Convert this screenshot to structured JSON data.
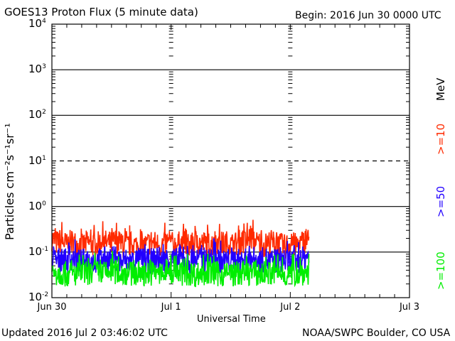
{
  "chart_data": {
    "type": "line",
    "title": "GOES13 Proton Flux (5 minute data)",
    "begin_label": "Begin: 2016 Jun 30 0000 UTC",
    "xlabel": "Universal Time",
    "ylabel": "Particles cm⁻²s⁻¹sr⁻¹",
    "yscale": "log",
    "ylim": [
      0.01,
      10000
    ],
    "y_ticks": [
      {
        "base": "10",
        "exp": "4",
        "value": 10000
      },
      {
        "base": "10",
        "exp": "3",
        "value": 1000
      },
      {
        "base": "10",
        "exp": "2",
        "value": 100
      },
      {
        "base": "10",
        "exp": "1",
        "value": 10
      },
      {
        "base": "10",
        "exp": "0",
        "value": 1
      },
      {
        "base": "10",
        "exp": "-1",
        "value": 0.1
      },
      {
        "base": "10",
        "exp": "-2",
        "value": 0.01
      }
    ],
    "xlim_hours": [
      0,
      72
    ],
    "x_ticks": [
      {
        "label": "Jun 30",
        "hour": 0
      },
      {
        "label": "Jul 1",
        "hour": 24
      },
      {
        "label": "Jul 2",
        "hour": 48
      },
      {
        "label": "Jul 3",
        "hour": 72
      }
    ],
    "dashed_threshold": 10,
    "grid": "horizontal decade lines",
    "legend": {
      "unit": "MeV",
      "placement": "right"
    },
    "series": [
      {
        "name": ">=10",
        "color": "#ff2a00",
        "start_hour": 0,
        "step_hours": 1,
        "values": [
          0.2,
          0.16,
          0.18,
          0.14,
          0.17,
          0.15,
          0.13,
          0.16,
          0.15,
          0.14,
          0.17,
          0.16,
          0.15,
          0.18,
          0.14,
          0.13,
          0.15,
          0.14,
          0.13,
          0.14,
          0.17,
          0.15,
          0.14,
          0.16,
          0.15,
          0.14,
          0.16,
          0.15,
          0.13,
          0.17,
          0.15,
          0.16,
          0.14,
          0.18,
          0.15,
          0.16,
          0.14,
          0.15,
          0.17,
          0.16,
          0.22,
          0.16,
          0.15,
          0.14,
          0.17,
          0.15,
          0.14,
          0.13,
          0.16,
          0.14,
          0.15,
          0.18
        ]
      },
      {
        "name": ">=50",
        "color": "#2200ff",
        "start_hour": 0,
        "step_hours": 1,
        "values": [
          0.07,
          0.065,
          0.07,
          0.06,
          0.075,
          0.065,
          0.06,
          0.07,
          0.065,
          0.06,
          0.07,
          0.068,
          0.07,
          0.075,
          0.06,
          0.065,
          0.062,
          0.065,
          0.07,
          0.06,
          0.065,
          0.07,
          0.06,
          0.068,
          0.07,
          0.065,
          0.072,
          0.06,
          0.065,
          0.07,
          0.065,
          0.06,
          0.07,
          0.075,
          0.065,
          0.06,
          0.07,
          0.065,
          0.06,
          0.07,
          0.075,
          0.068,
          0.065,
          0.07,
          0.06,
          0.065,
          0.07,
          0.06,
          0.065,
          0.06,
          0.065,
          0.075
        ]
      },
      {
        "name": ">=100",
        "color": "#00ee00",
        "start_hour": 0,
        "step_hours": 1,
        "values": [
          0.035,
          0.033,
          0.035,
          0.032,
          0.034,
          0.033,
          0.035,
          0.032,
          0.034,
          0.036,
          0.033,
          0.034,
          0.04,
          0.036,
          0.034,
          0.035,
          0.033,
          0.032,
          0.034,
          0.033,
          0.035,
          0.033,
          0.032,
          0.034,
          0.035,
          0.033,
          0.034,
          0.033,
          0.035,
          0.032,
          0.034,
          0.033,
          0.035,
          0.034,
          0.033,
          0.032,
          0.034,
          0.033,
          0.035,
          0.034,
          0.036,
          0.035,
          0.033,
          0.034,
          0.033,
          0.035,
          0.034,
          0.033,
          0.032,
          0.034,
          0.035,
          0.036
        ]
      }
    ]
  },
  "footer": {
    "updated": "Updated 2016 Jul  2 03:46:02 UTC",
    "credit": "NOAA/SWPC Boulder, CO USA"
  }
}
